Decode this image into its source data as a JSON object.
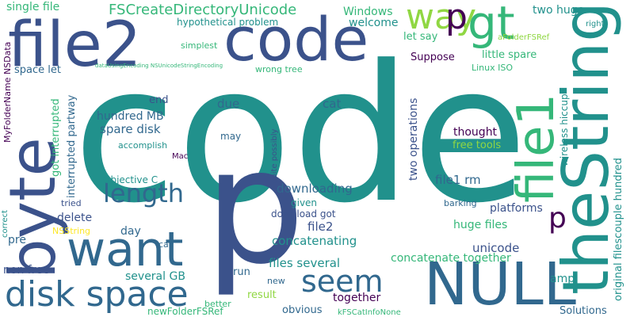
{
  "palette": {
    "dark_purple": "#440154",
    "indigo": "#3b528b",
    "blue": "#31688e",
    "teal": "#21918c",
    "green": "#35b779",
    "lime": "#90d743",
    "yellow": "#fde725"
  },
  "words": [
    {
      "text": "code",
      "color": "#21918c"
    },
    {
      "text": "p",
      "color": "#3b528b"
    },
    {
      "text": "file2",
      "color": "#3b528b"
    },
    {
      "text": "code",
      "color": "#3b528b"
    },
    {
      "text": "byte",
      "color": "#3b528b"
    },
    {
      "text": "theString",
      "color": "#21918c"
    },
    {
      "text": "NULL",
      "color": "#31688e"
    },
    {
      "text": "want",
      "color": "#31688e"
    },
    {
      "text": "disk space",
      "color": "#31688e"
    },
    {
      "text": "file1",
      "color": "#35b779"
    },
    {
      "text": "length",
      "color": "#31688e"
    },
    {
      "text": "gt",
      "color": "#35b779"
    },
    {
      "text": "way",
      "color": "#90d743"
    },
    {
      "text": "seem",
      "color": "#31688e"
    },
    {
      "text": "p",
      "color": "#440154"
    },
    {
      "text": "p",
      "color": "#440154"
    },
    {
      "text": "FSCreateDirectoryUnicode",
      "color": "#35b779"
    },
    {
      "text": "single file",
      "color": "#35b779"
    },
    {
      "text": "Windows",
      "color": "#35b779"
    },
    {
      "text": "two huge",
      "color": "#21918c"
    },
    {
      "text": "hypothetical problem",
      "color": "#21918c"
    },
    {
      "text": "welcome",
      "color": "#21918c"
    },
    {
      "text": "let say",
      "color": "#35b779"
    },
    {
      "text": "Suppose",
      "color": "#440154"
    },
    {
      "text": "little spare",
      "color": "#35b779"
    },
    {
      "text": "aFolderFSRef",
      "color": "#90d743"
    },
    {
      "text": "simplest",
      "color": "#35b779"
    },
    {
      "text": "space let",
      "color": "#31688e"
    },
    {
      "text": "wrong tree",
      "color": "#35b779"
    },
    {
      "text": "Linux ISO",
      "color": "#35b779"
    },
    {
      "text": "right",
      "color": "#21918c"
    },
    {
      "text": "end",
      "color": "#3b528b"
    },
    {
      "text": "hundred MB",
      "color": "#31688e"
    },
    {
      "text": "spare disk",
      "color": "#31688e"
    },
    {
      "text": "due",
      "color": "#31688e"
    },
    {
      "text": "cat",
      "color": "#31688e"
    },
    {
      "text": "thought",
      "color": "#440154"
    },
    {
      "text": "free tools",
      "color": "#90d743"
    },
    {
      "text": "may",
      "color": "#31688e"
    },
    {
      "text": "accomplish",
      "color": "#21918c"
    },
    {
      "text": "Mac",
      "color": "#440154"
    },
    {
      "text": "Objective C",
      "color": "#21918c"
    },
    {
      "text": "two operations",
      "color": "#3b528b"
    },
    {
      "text": "file1 rm",
      "color": "#31688e"
    },
    {
      "text": "got interrupted",
      "color": "#35b779"
    },
    {
      "text": "interrupted partway",
      "color": "#31688e"
    },
    {
      "text": "MyFolderName NSData",
      "color": "#440154"
    },
    {
      "text": "quite possibly",
      "color": "#3b528b"
    },
    {
      "text": "wireless hiccup",
      "color": "#21918c"
    },
    {
      "text": "original filescouple hundred",
      "color": "#21918c"
    },
    {
      "text": "downloading",
      "color": "#31688e"
    },
    {
      "text": "delete",
      "color": "#3b528b"
    },
    {
      "text": "tried",
      "color": "#3b528b"
    },
    {
      "text": "day",
      "color": "#31688e"
    },
    {
      "text": "given",
      "color": "#21918c"
    },
    {
      "text": "download got",
      "color": "#3b528b"
    },
    {
      "text": "platforms",
      "color": "#3b528b"
    },
    {
      "text": "barking",
      "color": "#31688e"
    },
    {
      "text": "pre",
      "color": "#31688e"
    },
    {
      "text": "NSString",
      "color": "#fde725"
    },
    {
      "text": "call",
      "color": "#31688e"
    },
    {
      "text": "file2",
      "color": "#3b528b"
    },
    {
      "text": "huge files",
      "color": "#35b779"
    },
    {
      "text": "concatenating",
      "color": "#21918c"
    },
    {
      "text": "concatenate together",
      "color": "#35b779"
    },
    {
      "text": "unicode",
      "color": "#3b528b"
    },
    {
      "text": "non free",
      "color": "#3b528b"
    },
    {
      "text": "several GB",
      "color": "#21918c"
    },
    {
      "text": "run",
      "color": "#31688e"
    },
    {
      "text": "files several",
      "color": "#21918c"
    },
    {
      "text": "amp",
      "color": "#21918c"
    },
    {
      "text": "result",
      "color": "#90d743"
    },
    {
      "text": "together",
      "color": "#440154"
    },
    {
      "text": "new",
      "color": "#31688e"
    },
    {
      "text": "obvious",
      "color": "#31688e"
    },
    {
      "text": "better",
      "color": "#35b779"
    },
    {
      "text": "newFolderFSRef",
      "color": "#35b779"
    },
    {
      "text": "kFSCatInfoNone",
      "color": "#35b779"
    },
    {
      "text": "Solutions",
      "color": "#31688e"
    },
    {
      "text": "correct",
      "color": "#21918c"
    },
    {
      "text": "dataUsingEncoding NSUnicodeStringEncoding",
      "color": "#35b779"
    }
  ]
}
